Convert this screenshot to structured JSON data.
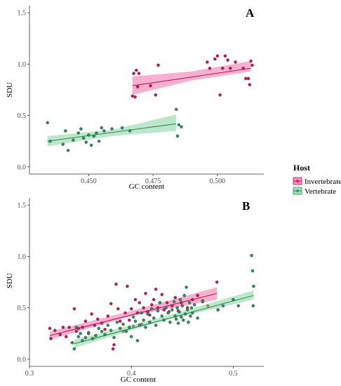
{
  "colors": {
    "invertebrate": "#c2185b",
    "invertebrate_band": "#f06faa",
    "vertebrate": "#2e8b57",
    "vertebrate_band": "#86d3a1",
    "axis": "#333333"
  },
  "legend": {
    "title": "Host",
    "entries": [
      "Invertebrate",
      "Vertebrate"
    ]
  },
  "chart_data": [
    {
      "type": "scatter",
      "panel_label": "A",
      "xlabel": "GC content",
      "ylabel": "SDU",
      "xlim": [
        0.427,
        0.518
      ],
      "ylim": [
        -0.07,
        1.57
      ],
      "x_ticks": [
        0.45,
        0.475,
        0.5
      ],
      "x_tick_labels": [
        "0.450",
        "0.475",
        "0.500"
      ],
      "y_ticks": [
        0,
        0.5,
        1.0,
        1.5
      ],
      "y_tick_labels": [
        "0.0",
        "0.5",
        "1.0",
        "1.5"
      ],
      "grid": false,
      "series": [
        {
          "name": "Invertebrate",
          "points": [
            [
              0.467,
              0.69
            ],
            [
              0.4675,
              0.91
            ],
            [
              0.468,
              0.68
            ],
            [
              0.4685,
              0.94
            ],
            [
              0.469,
              0.78
            ],
            [
              0.4695,
              0.91
            ],
            [
              0.474,
              0.79
            ],
            [
              0.476,
              0.7
            ],
            [
              0.477,
              0.99
            ],
            [
              0.496,
              1.02
            ],
            [
              0.497,
              0.96
            ],
            [
              0.499,
              1.05
            ],
            [
              0.5,
              1.08
            ],
            [
              0.501,
              0.7
            ],
            [
              0.502,
              0.96
            ],
            [
              0.503,
              1.08
            ],
            [
              0.504,
              1.04
            ],
            [
              0.505,
              0.96
            ],
            [
              0.507,
              1.02
            ],
            [
              0.51,
              0.96
            ],
            [
              0.511,
              0.86
            ],
            [
              0.512,
              0.86
            ],
            [
              0.5125,
              0.8
            ],
            [
              0.513,
              1.03
            ],
            [
              0.5135,
              0.99
            ]
          ],
          "fit": {
            "x": [
              0.467,
              0.513
            ],
            "y": [
              0.79,
              0.96
            ]
          },
          "band": {
            "x": [
              0.467,
              0.49,
              0.513
            ],
            "lower": [
              0.7,
              0.84,
              0.93
            ],
            "upper": [
              0.88,
              0.93,
              1.03
            ]
          }
        },
        {
          "name": "Vertebrate",
          "points": [
            [
              0.434,
              0.43
            ],
            [
              0.435,
              0.25
            ],
            [
              0.44,
              0.22
            ],
            [
              0.441,
              0.35
            ],
            [
              0.442,
              0.16
            ],
            [
              0.444,
              0.26
            ],
            [
              0.446,
              0.33
            ],
            [
              0.447,
              0.37
            ],
            [
              0.448,
              0.28
            ],
            [
              0.449,
              0.24
            ],
            [
              0.45,
              0.31
            ],
            [
              0.451,
              0.21
            ],
            [
              0.452,
              0.3
            ],
            [
              0.453,
              0.33
            ],
            [
              0.454,
              0.25
            ],
            [
              0.455,
              0.38
            ],
            [
              0.456,
              0.35
            ],
            [
              0.459,
              0.37
            ],
            [
              0.463,
              0.38
            ],
            [
              0.466,
              0.35
            ],
            [
              0.484,
              0.56
            ],
            [
              0.485,
              0.41
            ],
            [
              0.4845,
              0.3
            ],
            [
              0.486,
              0.39
            ]
          ],
          "fit": {
            "x": [
              0.434,
              0.484
            ],
            "y": [
              0.25,
              0.42
            ]
          },
          "band": {
            "x": [
              0.434,
              0.459,
              0.484
            ],
            "lower": [
              0.2,
              0.3,
              0.35
            ],
            "upper": [
              0.3,
              0.36,
              0.51
            ]
          }
        }
      ]
    },
    {
      "type": "scatter",
      "panel_label": "B",
      "xlabel": "GC content",
      "ylabel": "SDU",
      "xlim": [
        0.3,
        0.53
      ],
      "ylim": [
        -0.07,
        1.57
      ],
      "x_ticks": [
        0.3,
        0.4,
        0.5
      ],
      "x_tick_labels": [
        "0.3",
        "0.4",
        "0.5"
      ],
      "y_ticks": [
        0,
        0.5,
        1.0,
        1.5
      ],
      "y_tick_labels": [
        "0.0",
        "0.5",
        "1.0",
        "1.5"
      ],
      "grid": false,
      "series": [
        {
          "name": "Invertebrate",
          "points": [
            [
              0.32,
              0.3
            ],
            [
              0.321,
              0.2
            ],
            [
              0.325,
              0.28
            ],
            [
              0.33,
              0.24
            ],
            [
              0.333,
              0.31
            ],
            [
              0.336,
              0.22
            ],
            [
              0.339,
              0.31
            ],
            [
              0.342,
              0.16
            ],
            [
              0.344,
              0.49
            ],
            [
              0.346,
              0.27
            ],
            [
              0.348,
              0.3
            ],
            [
              0.352,
              0.31
            ],
            [
              0.355,
              0.37
            ],
            [
              0.358,
              0.25
            ],
            [
              0.361,
              0.44
            ],
            [
              0.364,
              0.33
            ],
            [
              0.367,
              0.39
            ],
            [
              0.371,
              0.35
            ],
            [
              0.374,
              0.29
            ],
            [
              0.377,
              0.42
            ],
            [
              0.38,
              0.54
            ],
            [
              0.382,
              0.1
            ],
            [
              0.383,
              0.14
            ],
            [
              0.385,
              0.73
            ],
            [
              0.387,
              0.49
            ],
            [
              0.389,
              0.37
            ],
            [
              0.392,
              0.27
            ],
            [
              0.394,
              0.45
            ],
            [
              0.396,
              0.71
            ],
            [
              0.398,
              0.38
            ],
            [
              0.4,
              0.49
            ],
            [
              0.402,
              0.32
            ],
            [
              0.404,
              0.58
            ],
            [
              0.406,
              0.45
            ],
            [
              0.408,
              0.55
            ],
            [
              0.41,
              0.34
            ],
            [
              0.412,
              0.5
            ],
            [
              0.414,
              0.64
            ],
            [
              0.416,
              0.46
            ],
            [
              0.418,
              0.43
            ],
            [
              0.42,
              0.53
            ],
            [
              0.422,
              0.58
            ],
            [
              0.424,
              0.68
            ],
            [
              0.426,
              0.5
            ],
            [
              0.428,
              0.55
            ],
            [
              0.43,
              0.63
            ],
            [
              0.432,
              0.48
            ],
            [
              0.435,
              0.55
            ],
            [
              0.437,
              0.46
            ],
            [
              0.44,
              0.52
            ],
            [
              0.443,
              0.6
            ],
            [
              0.446,
              0.47
            ],
            [
              0.449,
              0.55
            ],
            [
              0.455,
              0.5
            ],
            [
              0.46,
              0.58
            ],
            [
              0.465,
              0.62
            ],
            [
              0.47,
              0.56
            ],
            [
              0.475,
              0.52
            ],
            [
              0.484,
              0.75
            ],
            [
              0.485,
              0.48
            ]
          ],
          "fit": {
            "x": [
              0.32,
              0.484
            ],
            "y": [
              0.23,
              0.64
            ]
          },
          "band": {
            "x": [
              0.32,
              0.4,
              0.484
            ],
            "lower": [
              0.19,
              0.42,
              0.58
            ],
            "upper": [
              0.27,
              0.47,
              0.7
            ]
          }
        },
        {
          "name": "Vertebrate",
          "points": [
            [
              0.342,
              0.16
            ],
            [
              0.344,
              0.1
            ],
            [
              0.346,
              0.31
            ],
            [
              0.348,
              0.22
            ],
            [
              0.35,
              0.25
            ],
            [
              0.352,
              0.18
            ],
            [
              0.355,
              0.21
            ],
            [
              0.358,
              0.26
            ],
            [
              0.362,
              0.2
            ],
            [
              0.365,
              0.23
            ],
            [
              0.368,
              0.3
            ],
            [
              0.371,
              0.27
            ],
            [
              0.374,
              0.24
            ],
            [
              0.377,
              0.33
            ],
            [
              0.38,
              0.28
            ],
            [
              0.383,
              0.21
            ],
            [
              0.386,
              0.36
            ],
            [
              0.389,
              0.3
            ],
            [
              0.392,
              0.34
            ],
            [
              0.395,
              0.27
            ],
            [
              0.398,
              0.31
            ],
            [
              0.4,
              0.22
            ],
            [
              0.402,
              0.41
            ],
            [
              0.404,
              0.37
            ],
            [
              0.406,
              0.18
            ],
            [
              0.408,
              0.33
            ],
            [
              0.41,
              0.45
            ],
            [
              0.412,
              0.38
            ],
            [
              0.414,
              0.31
            ],
            [
              0.416,
              0.44
            ],
            [
              0.418,
              0.36
            ],
            [
              0.42,
              0.49
            ],
            [
              0.422,
              0.4
            ],
            [
              0.424,
              0.33
            ],
            [
              0.426,
              0.47
            ],
            [
              0.428,
              0.55
            ],
            [
              0.43,
              0.42
            ],
            [
              0.432,
              0.38
            ],
            [
              0.434,
              0.5
            ],
            [
              0.436,
              0.45
            ],
            [
              0.438,
              0.36
            ],
            [
              0.44,
              0.48
            ],
            [
              0.442,
              0.56
            ],
            [
              0.443,
              0.42
            ],
            [
              0.444,
              0.39
            ],
            [
              0.445,
              0.5
            ],
            [
              0.446,
              0.35
            ],
            [
              0.447,
              0.46
            ],
            [
              0.448,
              0.58
            ],
            [
              0.449,
              0.41
            ],
            [
              0.45,
              0.52
            ],
            [
              0.451,
              0.38
            ],
            [
              0.452,
              0.62
            ],
            [
              0.453,
              0.44
            ],
            [
              0.454,
              0.7
            ],
            [
              0.455,
              0.48
            ],
            [
              0.456,
              0.36
            ],
            [
              0.457,
              0.55
            ],
            [
              0.458,
              0.42
            ],
            [
              0.459,
              0.5
            ],
            [
              0.46,
              0.45
            ],
            [
              0.462,
              0.53
            ],
            [
              0.465,
              0.4
            ],
            [
              0.47,
              0.57
            ],
            [
              0.485,
              0.48
            ],
            [
              0.49,
              0.52
            ],
            [
              0.5,
              0.58
            ],
            [
              0.505,
              0.52
            ],
            [
              0.518,
              1.01
            ],
            [
              0.519,
              0.86
            ],
            [
              0.52,
              0.71
            ],
            [
              0.5195,
              0.52
            ]
          ],
          "fit": {
            "x": [
              0.344,
              0.52
            ],
            "y": [
              0.15,
              0.62
            ]
          },
          "band": {
            "x": [
              0.344,
              0.43,
              0.52
            ],
            "lower": [
              0.11,
              0.37,
              0.58
            ],
            "upper": [
              0.19,
              0.41,
              0.67
            ]
          }
        }
      ]
    }
  ]
}
